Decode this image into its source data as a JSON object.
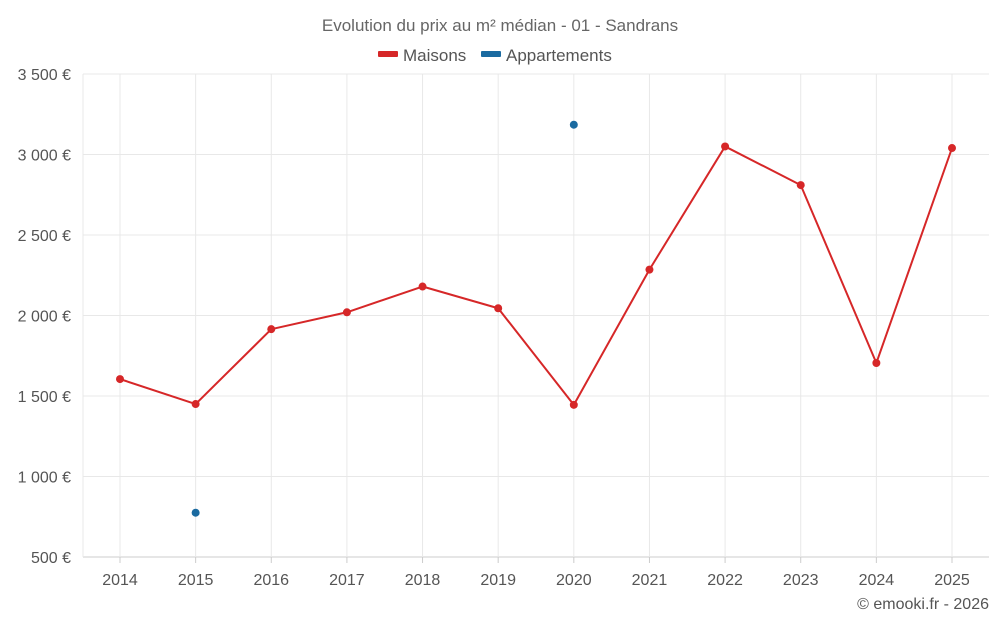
{
  "chart_data": {
    "type": "line",
    "title": "Evolution du prix au m² médian - 01 - Sandrans",
    "categories": [
      "2014",
      "2015",
      "2016",
      "2017",
      "2018",
      "2019",
      "2020",
      "2021",
      "2022",
      "2023",
      "2024",
      "2025"
    ],
    "ylim": [
      500,
      3500
    ],
    "yticks": [
      500,
      1000,
      1500,
      2000,
      2500,
      3000,
      3500
    ],
    "ytick_labels": [
      "500 €",
      "1 000 €",
      "1 500 €",
      "2 000 €",
      "2 500 €",
      "3 000 €",
      "3 500 €"
    ],
    "grid": true,
    "legend_position": "top-center",
    "series": [
      {
        "name": "Maisons",
        "color": "#d62728",
        "line": true,
        "values": [
          1605,
          1450,
          1915,
          2020,
          2180,
          2045,
          1445,
          2285,
          3050,
          2810,
          1705,
          3040
        ]
      },
      {
        "name": "Appartements",
        "color": "#1a6aa0",
        "line": false,
        "values": [
          null,
          775,
          null,
          null,
          null,
          null,
          3185,
          null,
          null,
          null,
          null,
          null
        ]
      }
    ]
  },
  "credit": "© emooki.fr - 2026"
}
